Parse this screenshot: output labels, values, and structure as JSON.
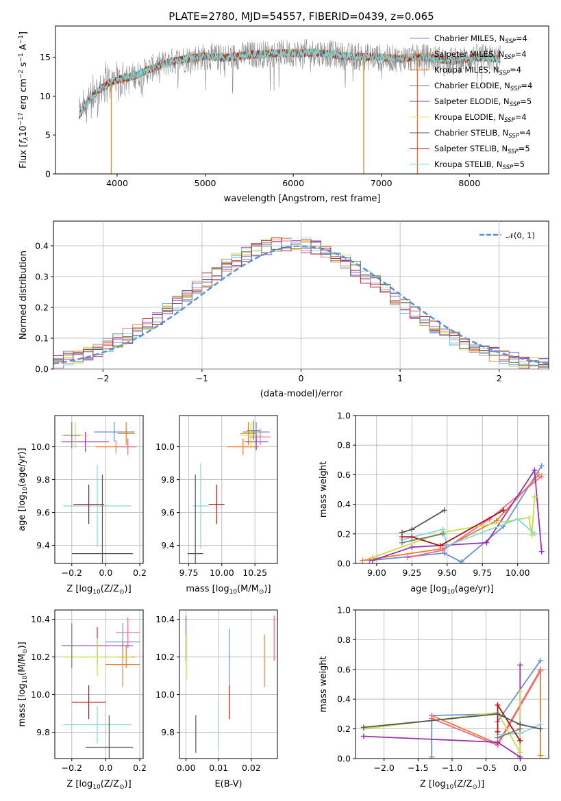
{
  "figure": {
    "title": "PLATE=2780, MJD=54557, FIBERID=0439, z=0.065"
  },
  "colors": {
    "c_miles": "#6a8fd6",
    "s_miles": "#f07b2b",
    "k_miles": "#d8861c",
    "c_elodie": "#7a7a7a",
    "s_elodie": "#9a30b0",
    "k_elodie": "#e0e070",
    "c_stelib": "#555555",
    "s_stelib": "#b01010",
    "k_stelib": "#80dada"
  },
  "chart_data": [
    {
      "id": "spectrum",
      "type": "line",
      "xlabel": "wavelength [Angstrom, rest frame]",
      "ylabel_main": "Flux [",
      "ylabel_f": "f",
      "ylabel_lambda": "λ",
      "ylabel_mid": "10",
      "ylabel_exp1": "−17",
      "ylabel_mid2": " erg cm",
      "ylabel_exp2": "−2",
      "ylabel_mid3": " s",
      "ylabel_exp3": "−1",
      "ylabel_end": " A",
      "ylabel_exp4": "−1",
      "ylabel_close": "]",
      "xlim": [
        3300,
        8900
      ],
      "ylim": [
        0,
        19
      ],
      "xticks": [
        4000,
        5000,
        6000,
        7000,
        8000
      ],
      "yticks": [
        0,
        5,
        10,
        15
      ],
      "xtick_labels": [
        "4000",
        "5000",
        "6000",
        "7000",
        "8000"
      ],
      "ytick_labels": [
        "0",
        "5",
        "10",
        "15"
      ],
      "continuum": [
        [
          3570,
          7.5
        ],
        [
          3700,
          9.8
        ],
        [
          3800,
          10.8
        ],
        [
          3900,
          11.6
        ],
        [
          4000,
          12.1
        ],
        [
          4200,
          12.6
        ],
        [
          4400,
          13.6
        ],
        [
          4600,
          14.4
        ],
        [
          4800,
          14.8
        ],
        [
          5000,
          15.1
        ],
        [
          5200,
          14.9
        ],
        [
          5500,
          15.3
        ],
        [
          5800,
          15.5
        ],
        [
          6000,
          15.5
        ],
        [
          6300,
          15.6
        ],
        [
          6600,
          15.1
        ],
        [
          6900,
          15.0
        ],
        [
          7200,
          14.8
        ],
        [
          7500,
          15.0
        ],
        [
          7800,
          14.5
        ],
        [
          8100,
          15.0
        ],
        [
          8300,
          14.8
        ]
      ],
      "features": [
        [
          3934,
          0
        ],
        [
          6800,
          0
        ],
        [
          7410,
          0
        ]
      ],
      "series": [
        {
          "name_pre": "Chabrier MILES, N",
          "sub": "SSP",
          "name_post": "=4",
          "color": "#6a8fd6",
          "x_end": 8350
        },
        {
          "name_pre": "Salpeter MILES, N",
          "sub": "SSP",
          "name_post": "=4",
          "color": "#f07b2b",
          "x_end": 8350
        },
        {
          "name_pre": "Kroupa MILES, N",
          "sub": "SSP",
          "name_post": "=4",
          "color": "#d8861c",
          "x_end": 8350
        },
        {
          "name_pre": "Chabrier ELODIE, N",
          "sub": "SSP",
          "name_post": "=4",
          "color": "#7a7a7a",
          "x_end": 8350
        },
        {
          "name_pre": "Salpeter ELODIE, N",
          "sub": "SSP",
          "name_post": "=5",
          "color": "#9a30b0",
          "x_end": 6800
        },
        {
          "name_pre": "Kroupa ELODIE, N",
          "sub": "SSP",
          "name_post": "=4",
          "color": "#e0e070",
          "x_end": 6800
        },
        {
          "name_pre": "Chabrier STELIB, N",
          "sub": "SSP",
          "name_post": "=4",
          "color": "#555555",
          "x_end": 8350
        },
        {
          "name_pre": "Salpeter STELIB, N",
          "sub": "SSP",
          "name_post": "=5",
          "color": "#b01010",
          "x_end": 8350
        },
        {
          "name_pre": "Kroupa STELIB, N",
          "sub": "SSP",
          "name_post": "=5",
          "color": "#80dada",
          "x_end": 8350
        }
      ],
      "legend": "top-right"
    },
    {
      "id": "residual_hist",
      "type": "histogram",
      "xlabel": "(data-model)/error",
      "ylabel": "Normed distribution",
      "xlim": [
        -2.5,
        2.5
      ],
      "ylim": [
        0,
        0.48
      ],
      "xticks": [
        -2,
        -1,
        0,
        1,
        2
      ],
      "xtick_labels": [
        "−2",
        "−1",
        "0",
        "1",
        "2"
      ],
      "yticks": [
        0.0,
        0.1,
        0.2,
        0.3,
        0.4
      ],
      "ytick_labels": [
        "0.0",
        "0.1",
        "0.2",
        "0.3",
        "0.4"
      ],
      "grid": true,
      "gaussian_label": "𝒩(0, 1)",
      "gaussian_color": "#5b8ed6",
      "bin_width": 0.1,
      "legend": "top-right"
    },
    {
      "id": "age_vs_z",
      "type": "errorbar",
      "xlabel": "Z [log",
      "xlabel_sub": "10",
      "xlabel_post": "(Z/Z",
      "xlabel_sub2": "⊙",
      "xlabel_close": ")]",
      "ylabel": "age  [log",
      "ylabel_sub": "10",
      "ylabel_post": "(age/yr)]",
      "xlim": [
        -0.3,
        0.22
      ],
      "ylim": [
        9.29,
        10.19
      ],
      "xticks": [
        -0.2,
        0.0,
        0.2
      ],
      "xtick_labels": [
        "−0.2",
        "0.0",
        "0.2"
      ],
      "yticks": [
        9.4,
        9.6,
        9.8,
        10.0
      ],
      "ytick_labels": [
        "9.4",
        "9.6",
        "9.8",
        "10.0"
      ],
      "points": [
        {
          "x": 0.05,
          "y": 10.09,
          "xe": 0.12,
          "ye": 0.06,
          "color": "#6a8fd6"
        },
        {
          "x": 0.06,
          "y": 10.0,
          "xe": 0.12,
          "ye": 0.04,
          "color": "#f07b2b"
        },
        {
          "x": 0.12,
          "y": 10.08,
          "xe": 0.05,
          "ye": 0.07,
          "color": "#d8861c"
        },
        {
          "x": 0.13,
          "y": 10.0,
          "xe": 0.04,
          "ye": 0.05,
          "color": "#e66a9a"
        },
        {
          "x": -0.12,
          "y": 10.03,
          "xe": 0.14,
          "ye": 0.06,
          "color": "#9a30b0"
        },
        {
          "x": -0.18,
          "y": 10.07,
          "xe": 0.08,
          "ye": 0.08,
          "color": "#c8de40"
        },
        {
          "x": -0.05,
          "y": 9.64,
          "xe": 0.2,
          "ye": 0.25,
          "color": "#80dada"
        },
        {
          "x": -0.1,
          "y": 9.65,
          "xe": 0.09,
          "ye": 0.12,
          "color": "#b01010"
        },
        {
          "x": -0.02,
          "y": 9.35,
          "xe": 0.18,
          "ye": 0.48,
          "color": "#555555"
        },
        {
          "x": -0.2,
          "y": 10.07,
          "xe": 0.05,
          "ye": 0.08,
          "color": "#7a7a7a"
        }
      ]
    },
    {
      "id": "age_vs_mass",
      "type": "errorbar",
      "xlabel": "mass [log",
      "xlabel_sub": "10",
      "xlabel_post": "(M/M",
      "xlabel_sub2": "⊙",
      "xlabel_close": ")]",
      "xlim": [
        9.68,
        10.42
      ],
      "ylim": [
        9.29,
        10.19
      ],
      "xticks": [
        9.75,
        10.0,
        10.25
      ],
      "xtick_labels": [
        "9.75",
        "10.00",
        "10.25"
      ],
      "yticks": [
        9.4,
        9.6,
        9.8,
        10.0
      ],
      "ytick_labels": [
        "9.4",
        "9.6",
        "9.8",
        "10.0"
      ],
      "points": [
        {
          "x": 10.26,
          "y": 10.09,
          "xe": 0.1,
          "ye": 0.06,
          "color": "#6a8fd6"
        },
        {
          "x": 10.16,
          "y": 10.0,
          "xe": 0.12,
          "ye": 0.05,
          "color": "#f07b2b"
        },
        {
          "x": 10.2,
          "y": 10.08,
          "xe": 0.06,
          "ye": 0.07,
          "color": "#d8861c"
        },
        {
          "x": 10.29,
          "y": 10.06,
          "xe": 0.08,
          "ye": 0.05,
          "color": "#e66a9a"
        },
        {
          "x": 10.26,
          "y": 10.03,
          "xe": 0.09,
          "ye": 0.05,
          "color": "#9a30b0"
        },
        {
          "x": 10.22,
          "y": 10.07,
          "xe": 0.08,
          "ye": 0.08,
          "color": "#c8de40"
        },
        {
          "x": 9.84,
          "y": 9.64,
          "xe": 0.06,
          "ye": 0.26,
          "color": "#80dada"
        },
        {
          "x": 9.96,
          "y": 9.65,
          "xe": 0.06,
          "ye": 0.12,
          "color": "#b01010"
        },
        {
          "x": 9.8,
          "y": 9.35,
          "xe": 0.06,
          "ye": 0.48,
          "color": "#555555"
        },
        {
          "x": 10.24,
          "y": 10.1,
          "xe": 0.05,
          "ye": 0.06,
          "color": "#7a7a7a"
        }
      ]
    },
    {
      "id": "weight_vs_age",
      "type": "line",
      "xlabel": "age  [log",
      "xlabel_sub": "10",
      "xlabel_post": "(age/yr)]",
      "ylabel": "mass weight",
      "xlim": [
        8.85,
        10.22
      ],
      "ylim": [
        0,
        1.0
      ],
      "xticks": [
        9.0,
        9.25,
        9.5,
        9.75,
        10.0
      ],
      "xtick_labels": [
        "9.00",
        "9.25",
        "9.50",
        "9.75",
        "10.00"
      ],
      "yticks": [
        0.0,
        0.2,
        0.4,
        0.6,
        0.8,
        1.0
      ],
      "ytick_labels": [
        "0.0",
        "0.2",
        "0.4",
        "0.6",
        "0.8",
        "1.0"
      ],
      "grid": true,
      "series": [
        {
          "color": "#6a8fd6",
          "x": [
            8.95,
            9.48,
            9.6,
            9.9,
            10.17
          ],
          "y": [
            0.02,
            0.07,
            0.01,
            0.25,
            0.66
          ]
        },
        {
          "color": "#f07b2b",
          "x": [
            8.9,
            9.47,
            9.85,
            10.15
          ],
          "y": [
            0.02,
            0.1,
            0.29,
            0.6
          ]
        },
        {
          "color": "#e66a9a",
          "x": [
            9.22,
            9.47,
            9.8,
            10.17
          ],
          "y": [
            0.04,
            0.09,
            0.3,
            0.59
          ]
        },
        {
          "color": "#9a30b0",
          "x": [
            8.97,
            9.25,
            9.78,
            10.12,
            10.17
          ],
          "y": [
            0.02,
            0.11,
            0.14,
            0.63,
            0.08
          ]
        },
        {
          "color": "#c8de40",
          "x": [
            8.97,
            9.47,
            10.08,
            10.1,
            10.12
          ],
          "y": [
            0.04,
            0.21,
            0.31,
            0.19,
            0.45
          ]
        },
        {
          "color": "#80dada",
          "x": [
            9.18,
            9.47,
            9.5,
            10.0,
            10.12
          ],
          "y": [
            0.16,
            0.23,
            0.12,
            0.3,
            0.2
          ]
        },
        {
          "color": "#b01010",
          "x": [
            9.18,
            9.25,
            9.45,
            9.9
          ],
          "y": [
            0.18,
            0.18,
            0.12,
            0.36
          ]
        },
        {
          "color": "#555555",
          "x": [
            9.18,
            9.25,
            9.48
          ],
          "y": [
            0.21,
            0.23,
            0.36
          ]
        },
        {
          "color": "#7a7a7a",
          "x": [
            9.18,
            9.47
          ],
          "y": [
            0.14,
            0.2
          ]
        }
      ]
    },
    {
      "id": "mass_vs_z",
      "type": "errorbar",
      "xlabel": "Z [log",
      "xlabel_sub": "10",
      "xlabel_post": "(Z/Z",
      "xlabel_sub2": "⊙",
      "xlabel_close": ")]",
      "ylabel": "mass [log",
      "ylabel_sub": "10",
      "ylabel_post": "(M/M",
      "ylabel_sub2": "⊙",
      "ylabel_close": ")]",
      "xlim": [
        -0.3,
        0.22
      ],
      "ylim": [
        9.66,
        10.45
      ],
      "xticks": [
        -0.2,
        0.0,
        0.2
      ],
      "xtick_labels": [
        "−0.2",
        "0.0",
        "0.2"
      ],
      "yticks": [
        9.8,
        10.0,
        10.2,
        10.4
      ],
      "ytick_labels": [
        "9.8",
        "10.0",
        "10.2",
        "10.4"
      ],
      "points": [
        {
          "x": 0.1,
          "y": 10.28,
          "xe": 0.1,
          "ye": 0.1,
          "color": "#6a8fd6"
        },
        {
          "x": 0.1,
          "y": 10.16,
          "xe": 0.1,
          "ye": 0.12,
          "color": "#f07b2b"
        },
        {
          "x": 0.12,
          "y": 10.2,
          "xe": 0.05,
          "ye": 0.06,
          "color": "#d8861c"
        },
        {
          "x": 0.13,
          "y": 10.33,
          "xe": 0.07,
          "ye": 0.08,
          "color": "#e66a9a"
        },
        {
          "x": -0.05,
          "y": 10.26,
          "xe": 0.21,
          "ye": 0.1,
          "color": "#9a30b0"
        },
        {
          "x": -0.05,
          "y": 10.2,
          "xe": 0.2,
          "ye": 0.1,
          "color": "#c8de40"
        },
        {
          "x": -0.05,
          "y": 9.84,
          "xe": 0.2,
          "ye": 0.1,
          "color": "#80dada"
        },
        {
          "x": -0.1,
          "y": 9.96,
          "xe": 0.1,
          "ye": 0.09,
          "color": "#b01010"
        },
        {
          "x": 0.02,
          "y": 9.72,
          "xe": 0.14,
          "ye": 0.17,
          "color": "#555555"
        },
        {
          "x": -0.2,
          "y": 10.26,
          "xe": 0.04,
          "ye": 0.12,
          "color": "#7a7a7a"
        }
      ]
    },
    {
      "id": "mass_vs_ebv",
      "type": "errorbar",
      "xlabel": "E(B-V)",
      "xlim": [
        -0.002,
        0.028
      ],
      "ylim": [
        9.66,
        10.45
      ],
      "xticks": [
        0.0,
        0.01,
        0.02
      ],
      "xtick_labels": [
        "0.00",
        "0.01",
        "0.02"
      ],
      "yticks": [
        9.8,
        10.0,
        10.2,
        10.4
      ],
      "ytick_labels": [
        "9.8",
        "10.0",
        "10.2",
        "10.4"
      ],
      "points": [
        {
          "x": 0.0133,
          "y": 10.2,
          "xe": 0,
          "ye": 0.15,
          "color": "#6a8fd6"
        },
        {
          "x": 0.024,
          "y": 10.18,
          "xe": 0,
          "ye": 0.14,
          "color": "#f07b2b"
        },
        {
          "x": 0.027,
          "y": 10.3,
          "xe": 0,
          "ye": 0.12,
          "color": "#e66a9a"
        },
        {
          "x": 0.0,
          "y": 10.3,
          "xe": 0,
          "ye": 0.12,
          "color": "#9a30b0"
        },
        {
          "x": 0.0001,
          "y": 10.2,
          "xe": 0,
          "ye": 0.12,
          "color": "#c8de40"
        },
        {
          "x": 0.01,
          "y": 9.84,
          "xe": 0,
          "ye": 0.13,
          "color": "#80dada"
        },
        {
          "x": 0.0133,
          "y": 9.96,
          "xe": 0,
          "ye": 0.09,
          "color": "#b01010"
        },
        {
          "x": 0.003,
          "y": 9.79,
          "xe": 0,
          "ye": 0.1,
          "color": "#555555"
        }
      ]
    },
    {
      "id": "weight_vs_z",
      "type": "line",
      "xlabel": "Z [log",
      "xlabel_sub": "10",
      "xlabel_post": "(Z/Z",
      "xlabel_sub2": "⊙",
      "xlabel_close": ")]",
      "ylabel": "mass weight",
      "xlim": [
        -2.42,
        0.42
      ],
      "ylim": [
        0,
        1.0
      ],
      "xticks": [
        -2.0,
        -1.5,
        -1.0,
        -0.5,
        0.0
      ],
      "xtick_labels": [
        "−2.0",
        "−1.5",
        "−1.0",
        "−0.5",
        "0.0"
      ],
      "yticks": [
        0.0,
        0.2,
        0.4,
        0.6,
        0.8,
        1.0
      ],
      "ytick_labels": [
        "0.0",
        "0.2",
        "0.4",
        "0.6",
        "0.8",
        "1.0"
      ],
      "grid": true,
      "series": [
        {
          "color": "#6a8fd6",
          "x": [
            -1.3,
            -1.3,
            -0.33,
            -0.33,
            0.3
          ],
          "y": [
            0.01,
            0.29,
            0.3,
            0.25,
            0.66
          ]
        },
        {
          "color": "#f07b2b",
          "x": [
            -1.3,
            -0.33,
            0.3,
            0.3
          ],
          "y": [
            0.29,
            0.1,
            0.6,
            0.02
          ]
        },
        {
          "color": "#e66a9a",
          "x": [
            -1.3,
            -0.33,
            0.3
          ],
          "y": [
            0.27,
            0.09,
            0.59
          ]
        },
        {
          "color": "#9a30b0",
          "x": [
            -2.3,
            -0.33,
            0.0,
            0.0
          ],
          "y": [
            0.15,
            0.11,
            0.01,
            0.63
          ]
        },
        {
          "color": "#c8de40",
          "x": [
            -2.3,
            -0.33,
            0.0,
            0.0
          ],
          "y": [
            0.2,
            0.31,
            0.04,
            0.45
          ]
        },
        {
          "color": "#80dada",
          "x": [
            -0.33,
            0.0,
            0.3
          ],
          "y": [
            0.16,
            0.17,
            0.23
          ]
        },
        {
          "color": "#b01010",
          "x": [
            -0.33,
            -0.33,
            0.0
          ],
          "y": [
            0.18,
            0.36,
            0.12
          ]
        },
        {
          "color": "#555555",
          "x": [
            -2.3,
            -0.33,
            0.0,
            0.3
          ],
          "y": [
            0.21,
            0.3,
            0.23,
            0.2
          ]
        },
        {
          "color": "#7a7a7a",
          "x": [
            -0.33,
            0.0
          ],
          "y": [
            0.14,
            0.2
          ]
        }
      ]
    }
  ]
}
